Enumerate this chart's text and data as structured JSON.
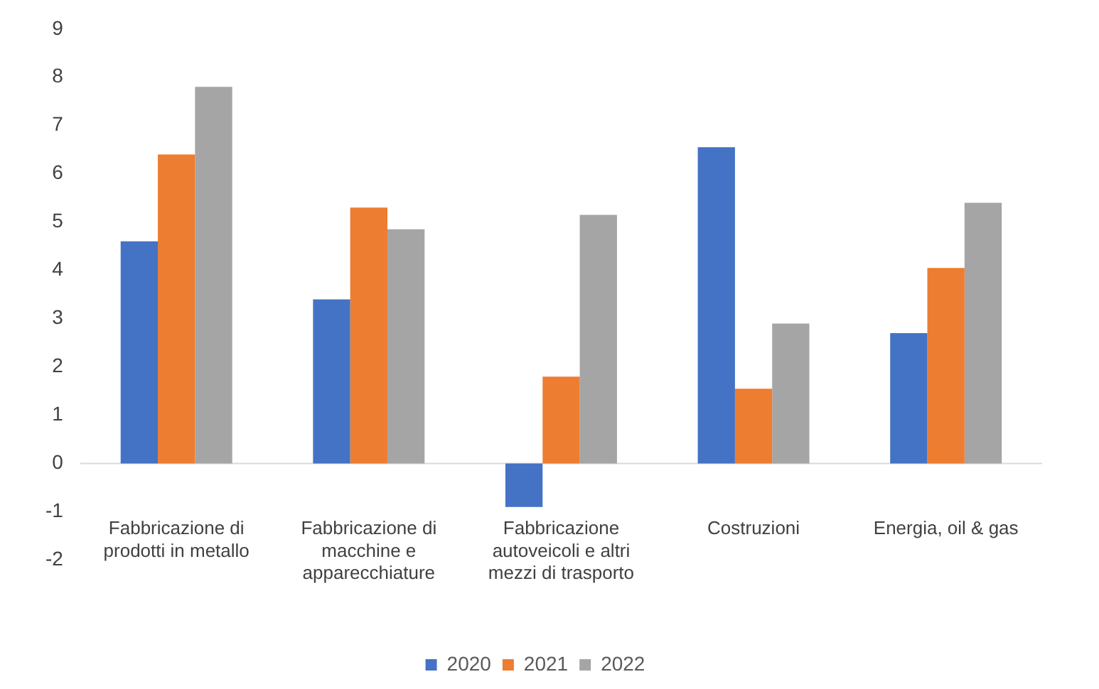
{
  "chart_data": {
    "type": "bar",
    "categories": [
      "Fabbricazione di prodotti in metallo",
      "Fabbricazione di macchine e apparecchiature",
      "Fabbricazione autoveicoli e altri mezzi di trasporto",
      "Costruzioni",
      "Energia, oil & gas"
    ],
    "series": [
      {
        "name": "2020",
        "color": "#4472c4",
        "values": [
          4.6,
          3.4,
          -0.9,
          6.55,
          2.7
        ]
      },
      {
        "name": "2021",
        "color": "#ed7d31",
        "values": [
          6.4,
          5.3,
          1.8,
          1.55,
          4.05
        ]
      },
      {
        "name": "2022",
        "color": "#a5a5a5",
        "values": [
          7.8,
          4.85,
          5.15,
          2.9,
          5.4
        ]
      }
    ],
    "ylim": [
      -2,
      9
    ],
    "yticks": [
      -2,
      -1,
      0,
      1,
      2,
      3,
      4,
      5,
      6,
      7,
      8,
      9
    ],
    "grid": false,
    "ref_lines": [
      {
        "axis": "y",
        "value": 0,
        "color": "#d9d9d9"
      }
    ],
    "legend": "bottom"
  }
}
